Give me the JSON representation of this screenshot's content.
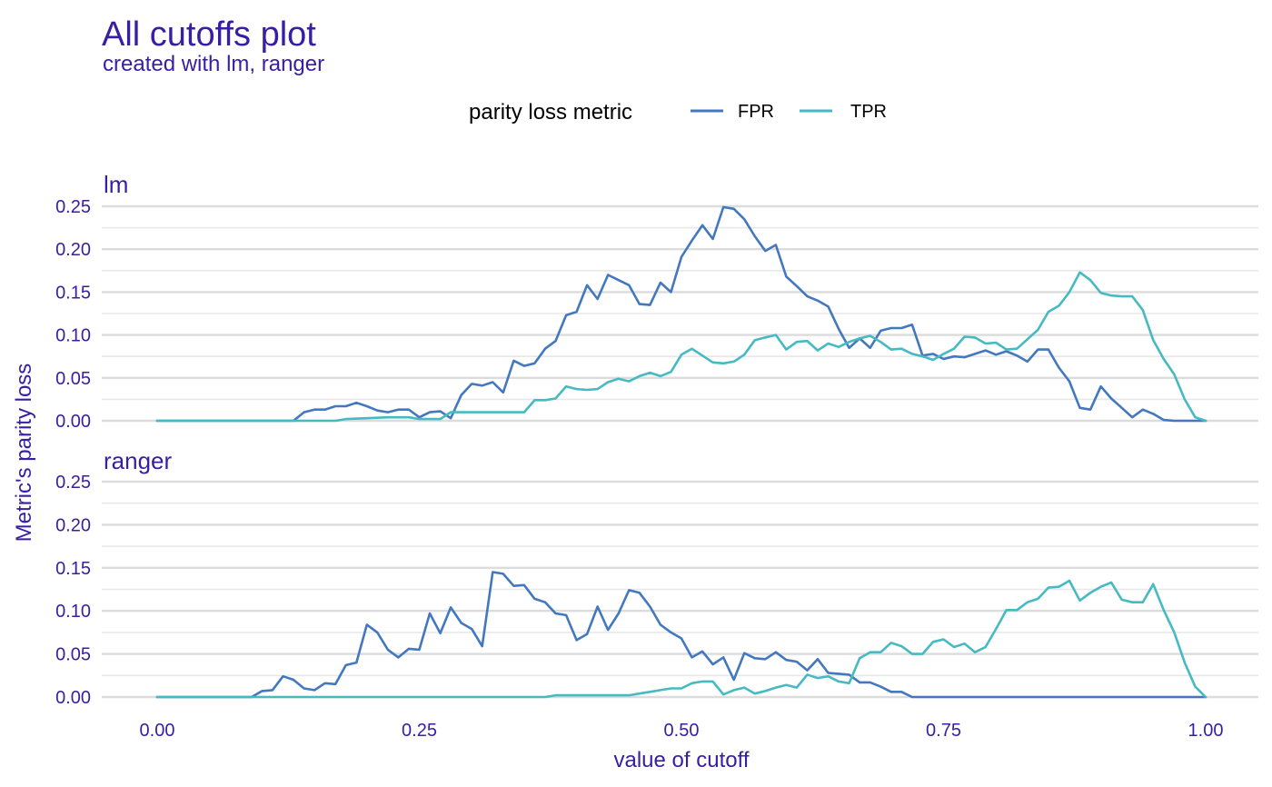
{
  "chart_data": {
    "type": "line",
    "title": "All cutoffs plot",
    "subtitle": "created with lm, ranger",
    "xlabel": "value of cutoff",
    "ylabel": "Metric's parity loss",
    "xlim": [
      0,
      1
    ],
    "ylim": [
      0,
      0.25
    ],
    "x_ticks": [
      "0.00",
      "0.25",
      "0.50",
      "0.75",
      "1.00"
    ],
    "y_ticks": [
      "0.00",
      "0.05",
      "0.10",
      "0.15",
      "0.20",
      "0.25"
    ],
    "grid": true,
    "legend": {
      "title": "parity loss metric",
      "position": "top",
      "entries": [
        {
          "label": "FPR",
          "color": "#4378bf"
        },
        {
          "label": "TPR",
          "color": "#46bac2"
        }
      ]
    },
    "panels": [
      {
        "label": "lm",
        "series": [
          {
            "name": "FPR",
            "color": "#4378bf",
            "x": [
              0,
              0.13,
              0.14,
              0.15,
              0.16,
              0.17,
              0.18,
              0.19,
              0.2,
              0.21,
              0.22,
              0.23,
              0.24,
              0.25,
              0.26,
              0.27,
              0.28,
              0.29,
              0.3,
              0.31,
              0.32,
              0.33,
              0.34,
              0.35,
              0.36,
              0.37,
              0.38,
              0.39,
              0.4,
              0.41,
              0.42,
              0.43,
              0.44,
              0.45,
              0.46,
              0.47,
              0.48,
              0.49,
              0.5,
              0.51,
              0.52,
              0.53,
              0.54,
              0.55,
              0.56,
              0.57,
              0.58,
              0.59,
              0.6,
              0.61,
              0.62,
              0.63,
              0.64,
              0.65,
              0.66,
              0.67,
              0.68,
              0.69,
              0.7,
              0.71,
              0.72,
              0.73,
              0.74,
              0.75,
              0.76,
              0.77,
              0.78,
              0.79,
              0.8,
              0.81,
              0.82,
              0.83,
              0.84,
              0.85,
              0.86,
              0.87,
              0.88,
              0.89,
              0.9,
              0.91,
              0.92,
              0.93,
              0.94,
              0.95,
              0.96,
              0.97,
              1.0
            ],
            "y": [
              0,
              0,
              0.01,
              0.013,
              0.013,
              0.017,
              0.017,
              0.021,
              0.017,
              0.012,
              0.01,
              0.013,
              0.013,
              0.004,
              0.01,
              0.011,
              0.003,
              0.03,
              0.043,
              0.041,
              0.045,
              0.033,
              0.07,
              0.064,
              0.067,
              0.084,
              0.093,
              0.123,
              0.127,
              0.158,
              0.142,
              0.17,
              0.164,
              0.158,
              0.136,
              0.135,
              0.161,
              0.15,
              0.191,
              0.21,
              0.228,
              0.212,
              0.249,
              0.247,
              0.235,
              0.215,
              0.198,
              0.205,
              0.168,
              0.157,
              0.145,
              0.14,
              0.133,
              0.107,
              0.085,
              0.096,
              0.085,
              0.105,
              0.108,
              0.108,
              0.112,
              0.076,
              0.078,
              0.072,
              0.075,
              0.074,
              0.078,
              0.082,
              0.077,
              0.081,
              0.076,
              0.069,
              0.083,
              0.083,
              0.062,
              0.046,
              0.015,
              0.013,
              0.04,
              0.026,
              0.015,
              0.004,
              0.013,
              0.008,
              0.001,
              0,
              0
            ]
          },
          {
            "name": "TPR",
            "color": "#46bac2",
            "x": [
              0,
              0.17,
              0.18,
              0.2,
              0.22,
              0.24,
              0.25,
              0.27,
              0.28,
              0.3,
              0.35,
              0.36,
              0.37,
              0.38,
              0.39,
              0.4,
              0.41,
              0.42,
              0.43,
              0.44,
              0.45,
              0.46,
              0.47,
              0.48,
              0.49,
              0.5,
              0.51,
              0.52,
              0.53,
              0.54,
              0.55,
              0.56,
              0.57,
              0.58,
              0.59,
              0.6,
              0.61,
              0.62,
              0.63,
              0.64,
              0.65,
              0.66,
              0.67,
              0.68,
              0.69,
              0.7,
              0.71,
              0.72,
              0.73,
              0.74,
              0.75,
              0.76,
              0.77,
              0.78,
              0.79,
              0.8,
              0.81,
              0.82,
              0.83,
              0.84,
              0.85,
              0.86,
              0.87,
              0.88,
              0.89,
              0.9,
              0.91,
              0.92,
              0.93,
              0.94,
              0.95,
              0.96,
              0.97,
              0.98,
              0.99,
              1.0
            ],
            "y": [
              0,
              0,
              0.002,
              0.003,
              0.004,
              0.004,
              0.002,
              0.002,
              0.01,
              0.01,
              0.01,
              0.024,
              0.024,
              0.026,
              0.04,
              0.037,
              0.036,
              0.037,
              0.045,
              0.049,
              0.046,
              0.052,
              0.056,
              0.052,
              0.057,
              0.077,
              0.084,
              0.076,
              0.068,
              0.067,
              0.069,
              0.077,
              0.094,
              0.097,
              0.1,
              0.083,
              0.092,
              0.093,
              0.082,
              0.09,
              0.086,
              0.092,
              0.096,
              0.099,
              0.092,
              0.083,
              0.084,
              0.078,
              0.075,
              0.071,
              0.078,
              0.084,
              0.098,
              0.097,
              0.09,
              0.091,
              0.083,
              0.084,
              0.095,
              0.106,
              0.127,
              0.134,
              0.15,
              0.173,
              0.164,
              0.149,
              0.146,
              0.145,
              0.145,
              0.129,
              0.094,
              0.072,
              0.054,
              0.025,
              0.004,
              0
            ]
          }
        ]
      },
      {
        "label": "ranger",
        "series": [
          {
            "name": "FPR",
            "color": "#4378bf",
            "x": [
              0,
              0.09,
              0.1,
              0.11,
              0.12,
              0.13,
              0.14,
              0.15,
              0.16,
              0.17,
              0.18,
              0.19,
              0.2,
              0.21,
              0.22,
              0.23,
              0.24,
              0.25,
              0.26,
              0.27,
              0.28,
              0.29,
              0.3,
              0.31,
              0.32,
              0.33,
              0.34,
              0.35,
              0.36,
              0.37,
              0.38,
              0.39,
              0.4,
              0.41,
              0.42,
              0.43,
              0.44,
              0.45,
              0.46,
              0.47,
              0.48,
              0.49,
              0.5,
              0.51,
              0.52,
              0.53,
              0.54,
              0.55,
              0.56,
              0.57,
              0.58,
              0.59,
              0.6,
              0.61,
              0.62,
              0.63,
              0.64,
              0.65,
              0.66,
              0.67,
              0.68,
              0.69,
              0.7,
              0.71,
              0.72,
              1.0
            ],
            "y": [
              0,
              0,
              0.007,
              0.008,
              0.024,
              0.02,
              0.01,
              0.008,
              0.016,
              0.015,
              0.037,
              0.04,
              0.084,
              0.075,
              0.055,
              0.046,
              0.056,
              0.055,
              0.097,
              0.074,
              0.104,
              0.086,
              0.079,
              0.059,
              0.145,
              0.143,
              0.129,
              0.13,
              0.114,
              0.11,
              0.097,
              0.095,
              0.066,
              0.073,
              0.105,
              0.078,
              0.097,
              0.124,
              0.121,
              0.105,
              0.084,
              0.075,
              0.068,
              0.046,
              0.053,
              0.038,
              0.046,
              0.02,
              0.051,
              0.045,
              0.044,
              0.052,
              0.043,
              0.041,
              0.031,
              0.044,
              0.028,
              0.027,
              0.026,
              0.017,
              0.017,
              0.012,
              0.006,
              0.006,
              0,
              0
            ]
          },
          {
            "name": "TPR",
            "color": "#46bac2",
            "x": [
              0,
              0.37,
              0.38,
              0.45,
              0.46,
              0.47,
              0.48,
              0.49,
              0.5,
              0.51,
              0.52,
              0.53,
              0.54,
              0.55,
              0.56,
              0.57,
              0.58,
              0.59,
              0.6,
              0.61,
              0.62,
              0.63,
              0.64,
              0.65,
              0.66,
              0.67,
              0.68,
              0.69,
              0.7,
              0.71,
              0.72,
              0.73,
              0.74,
              0.75,
              0.76,
              0.77,
              0.78,
              0.79,
              0.8,
              0.81,
              0.82,
              0.83,
              0.84,
              0.85,
              0.86,
              0.87,
              0.88,
              0.89,
              0.9,
              0.91,
              0.92,
              0.93,
              0.94,
              0.95,
              0.96,
              0.97,
              0.98,
              0.99,
              1.0
            ],
            "y": [
              0,
              0,
              0.002,
              0.002,
              0.004,
              0.006,
              0.008,
              0.01,
              0.01,
              0.016,
              0.018,
              0.018,
              0.003,
              0.008,
              0.011,
              0.004,
              0.007,
              0.011,
              0.014,
              0.011,
              0.026,
              0.022,
              0.024,
              0.018,
              0.016,
              0.045,
              0.052,
              0.052,
              0.063,
              0.059,
              0.05,
              0.05,
              0.064,
              0.067,
              0.058,
              0.062,
              0.052,
              0.058,
              0.079,
              0.101,
              0.101,
              0.11,
              0.114,
              0.127,
              0.128,
              0.135,
              0.112,
              0.121,
              0.128,
              0.133,
              0.113,
              0.11,
              0.11,
              0.131,
              0.101,
              0.075,
              0.04,
              0.012,
              0
            ]
          }
        ]
      }
    ]
  }
}
